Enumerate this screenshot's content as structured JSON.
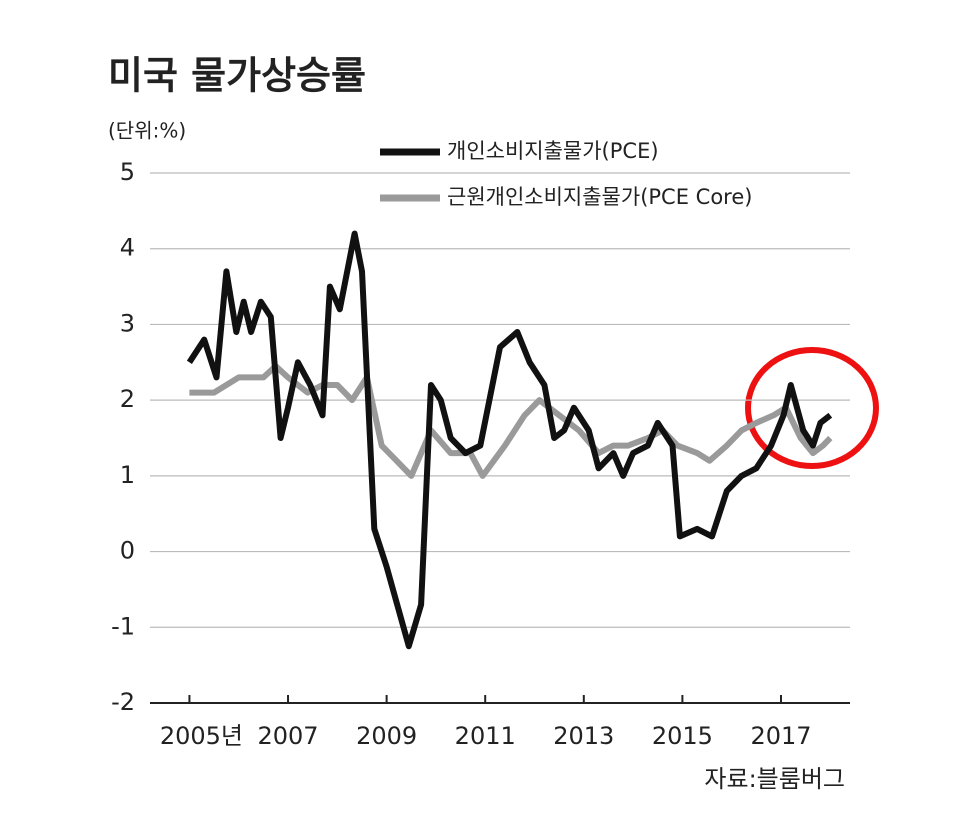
{
  "chart_data": {
    "type": "line",
    "title": "미국 물가상승률",
    "subtitle": "(단위:%)",
    "source": "자료:블룸버그",
    "xlim": [
      2004.2,
      2018.4
    ],
    "xticks": [
      {
        "value": 2005,
        "label": "2005년"
      },
      2007,
      2009,
      2011,
      2013,
      2015,
      2017
    ],
    "ylim": [
      -2,
      5
    ],
    "yticks": [
      -2,
      -1,
      0,
      1,
      2,
      3,
      4,
      5
    ],
    "grid": true,
    "legend": "top-right",
    "series": [
      {
        "name": "개인소비지출물가(PCE)",
        "color": "#111111",
        "x": [
          2005.0,
          2005.3,
          2005.55,
          2005.75,
          2005.95,
          2006.1,
          2006.25,
          2006.45,
          2006.65,
          2006.85,
          2007.0,
          2007.2,
          2007.45,
          2007.7,
          2007.85,
          2008.05,
          2008.35,
          2008.5,
          2008.75,
          2009.0,
          2009.45,
          2009.7,
          2009.9,
          2010.1,
          2010.3,
          2010.6,
          2010.9,
          2011.3,
          2011.65,
          2011.9,
          2012.2,
          2012.4,
          2012.6,
          2012.8,
          2013.1,
          2013.3,
          2013.6,
          2013.8,
          2014.0,
          2014.3,
          2014.5,
          2014.8,
          2014.95,
          2015.3,
          2015.6,
          2015.9,
          2016.2,
          2016.5,
          2016.8,
          2017.05,
          2017.2,
          2017.45,
          2017.65,
          2017.8,
          2018.0
        ],
        "values": [
          2.5,
          2.8,
          2.3,
          3.7,
          2.9,
          3.3,
          2.9,
          3.3,
          3.1,
          1.5,
          1.9,
          2.5,
          2.2,
          1.8,
          3.5,
          3.2,
          4.2,
          3.7,
          0.3,
          -0.2,
          -1.25,
          -0.7,
          2.2,
          2.0,
          1.5,
          1.3,
          1.4,
          2.7,
          2.9,
          2.5,
          2.2,
          1.5,
          1.6,
          1.9,
          1.6,
          1.1,
          1.3,
          1.0,
          1.3,
          1.4,
          1.7,
          1.4,
          0.2,
          0.3,
          0.2,
          0.8,
          1.0,
          1.1,
          1.4,
          1.8,
          2.2,
          1.6,
          1.4,
          1.7,
          1.8
        ]
      },
      {
        "name": "근원개인소비지출물가(PCE Core)",
        "color": "#9a9a9a",
        "x": [
          2005.0,
          2005.5,
          2006.0,
          2006.5,
          2006.75,
          2007.0,
          2007.4,
          2007.7,
          2008.0,
          2008.3,
          2008.6,
          2008.9,
          2009.2,
          2009.5,
          2009.9,
          2010.3,
          2010.7,
          2010.95,
          2011.4,
          2011.8,
          2012.1,
          2012.5,
          2012.9,
          2013.3,
          2013.6,
          2013.9,
          2014.3,
          2014.6,
          2014.9,
          2015.3,
          2015.55,
          2015.9,
          2016.2,
          2016.5,
          2016.85,
          2017.1,
          2017.4,
          2017.65,
          2017.85,
          2018.0
        ],
        "values": [
          2.1,
          2.1,
          2.3,
          2.3,
          2.45,
          2.3,
          2.1,
          2.2,
          2.2,
          2.0,
          2.3,
          1.4,
          1.2,
          1.0,
          1.6,
          1.3,
          1.3,
          1.0,
          1.4,
          1.8,
          2.0,
          1.8,
          1.6,
          1.3,
          1.4,
          1.4,
          1.5,
          1.6,
          1.4,
          1.3,
          1.2,
          1.4,
          1.6,
          1.7,
          1.8,
          1.9,
          1.5,
          1.3,
          1.4,
          1.5
        ]
      }
    ]
  }
}
